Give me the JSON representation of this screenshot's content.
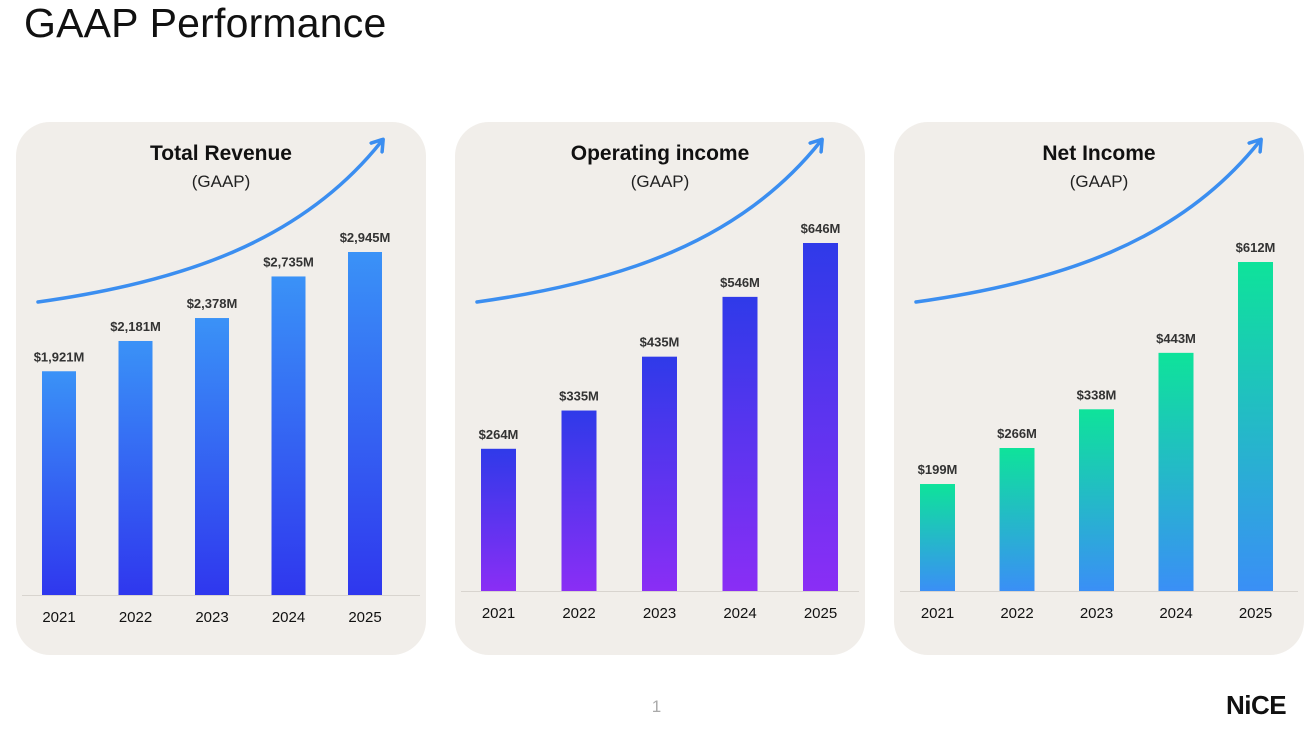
{
  "page": {
    "title": "GAAP Performance",
    "page_number": "1",
    "logo_text": "NiCE"
  },
  "colors": {
    "card_background": "#f1eeea",
    "arrow": "#3b8ef0"
  },
  "chart_data": [
    {
      "type": "bar",
      "title": "Total Revenue",
      "subtitle": "(GAAP)",
      "categories": [
        "2021",
        "2022",
        "2023",
        "2024",
        "2025"
      ],
      "values": [
        1921,
        2181,
        2378,
        2735,
        2945
      ],
      "labels": [
        "$1,921M",
        "$2,181M",
        "$2,378M",
        "$2,735M",
        "$2,945M"
      ],
      "gradient": [
        "#3a92f7",
        "#2f37ee"
      ]
    },
    {
      "type": "bar",
      "title": "Operating income",
      "subtitle": "(GAAP)",
      "categories": [
        "2021",
        "2022",
        "2023",
        "2024",
        "2025"
      ],
      "values": [
        264,
        335,
        435,
        546,
        646
      ],
      "labels": [
        "$264M",
        "$335M",
        "$435M",
        "$546M",
        "$646M"
      ],
      "gradient": [
        "#2f3ae9",
        "#8a2ef5"
      ]
    },
    {
      "type": "bar",
      "title": "Net Income",
      "subtitle": "(GAAP)",
      "categories": [
        "2021",
        "2022",
        "2023",
        "2024",
        "2025"
      ],
      "values": [
        199,
        266,
        338,
        443,
        612
      ],
      "labels": [
        "$199M",
        "$266M",
        "$338M",
        "$443M",
        "$612M"
      ],
      "gradient": [
        "#0ee39a",
        "#3a8ff6"
      ]
    }
  ]
}
